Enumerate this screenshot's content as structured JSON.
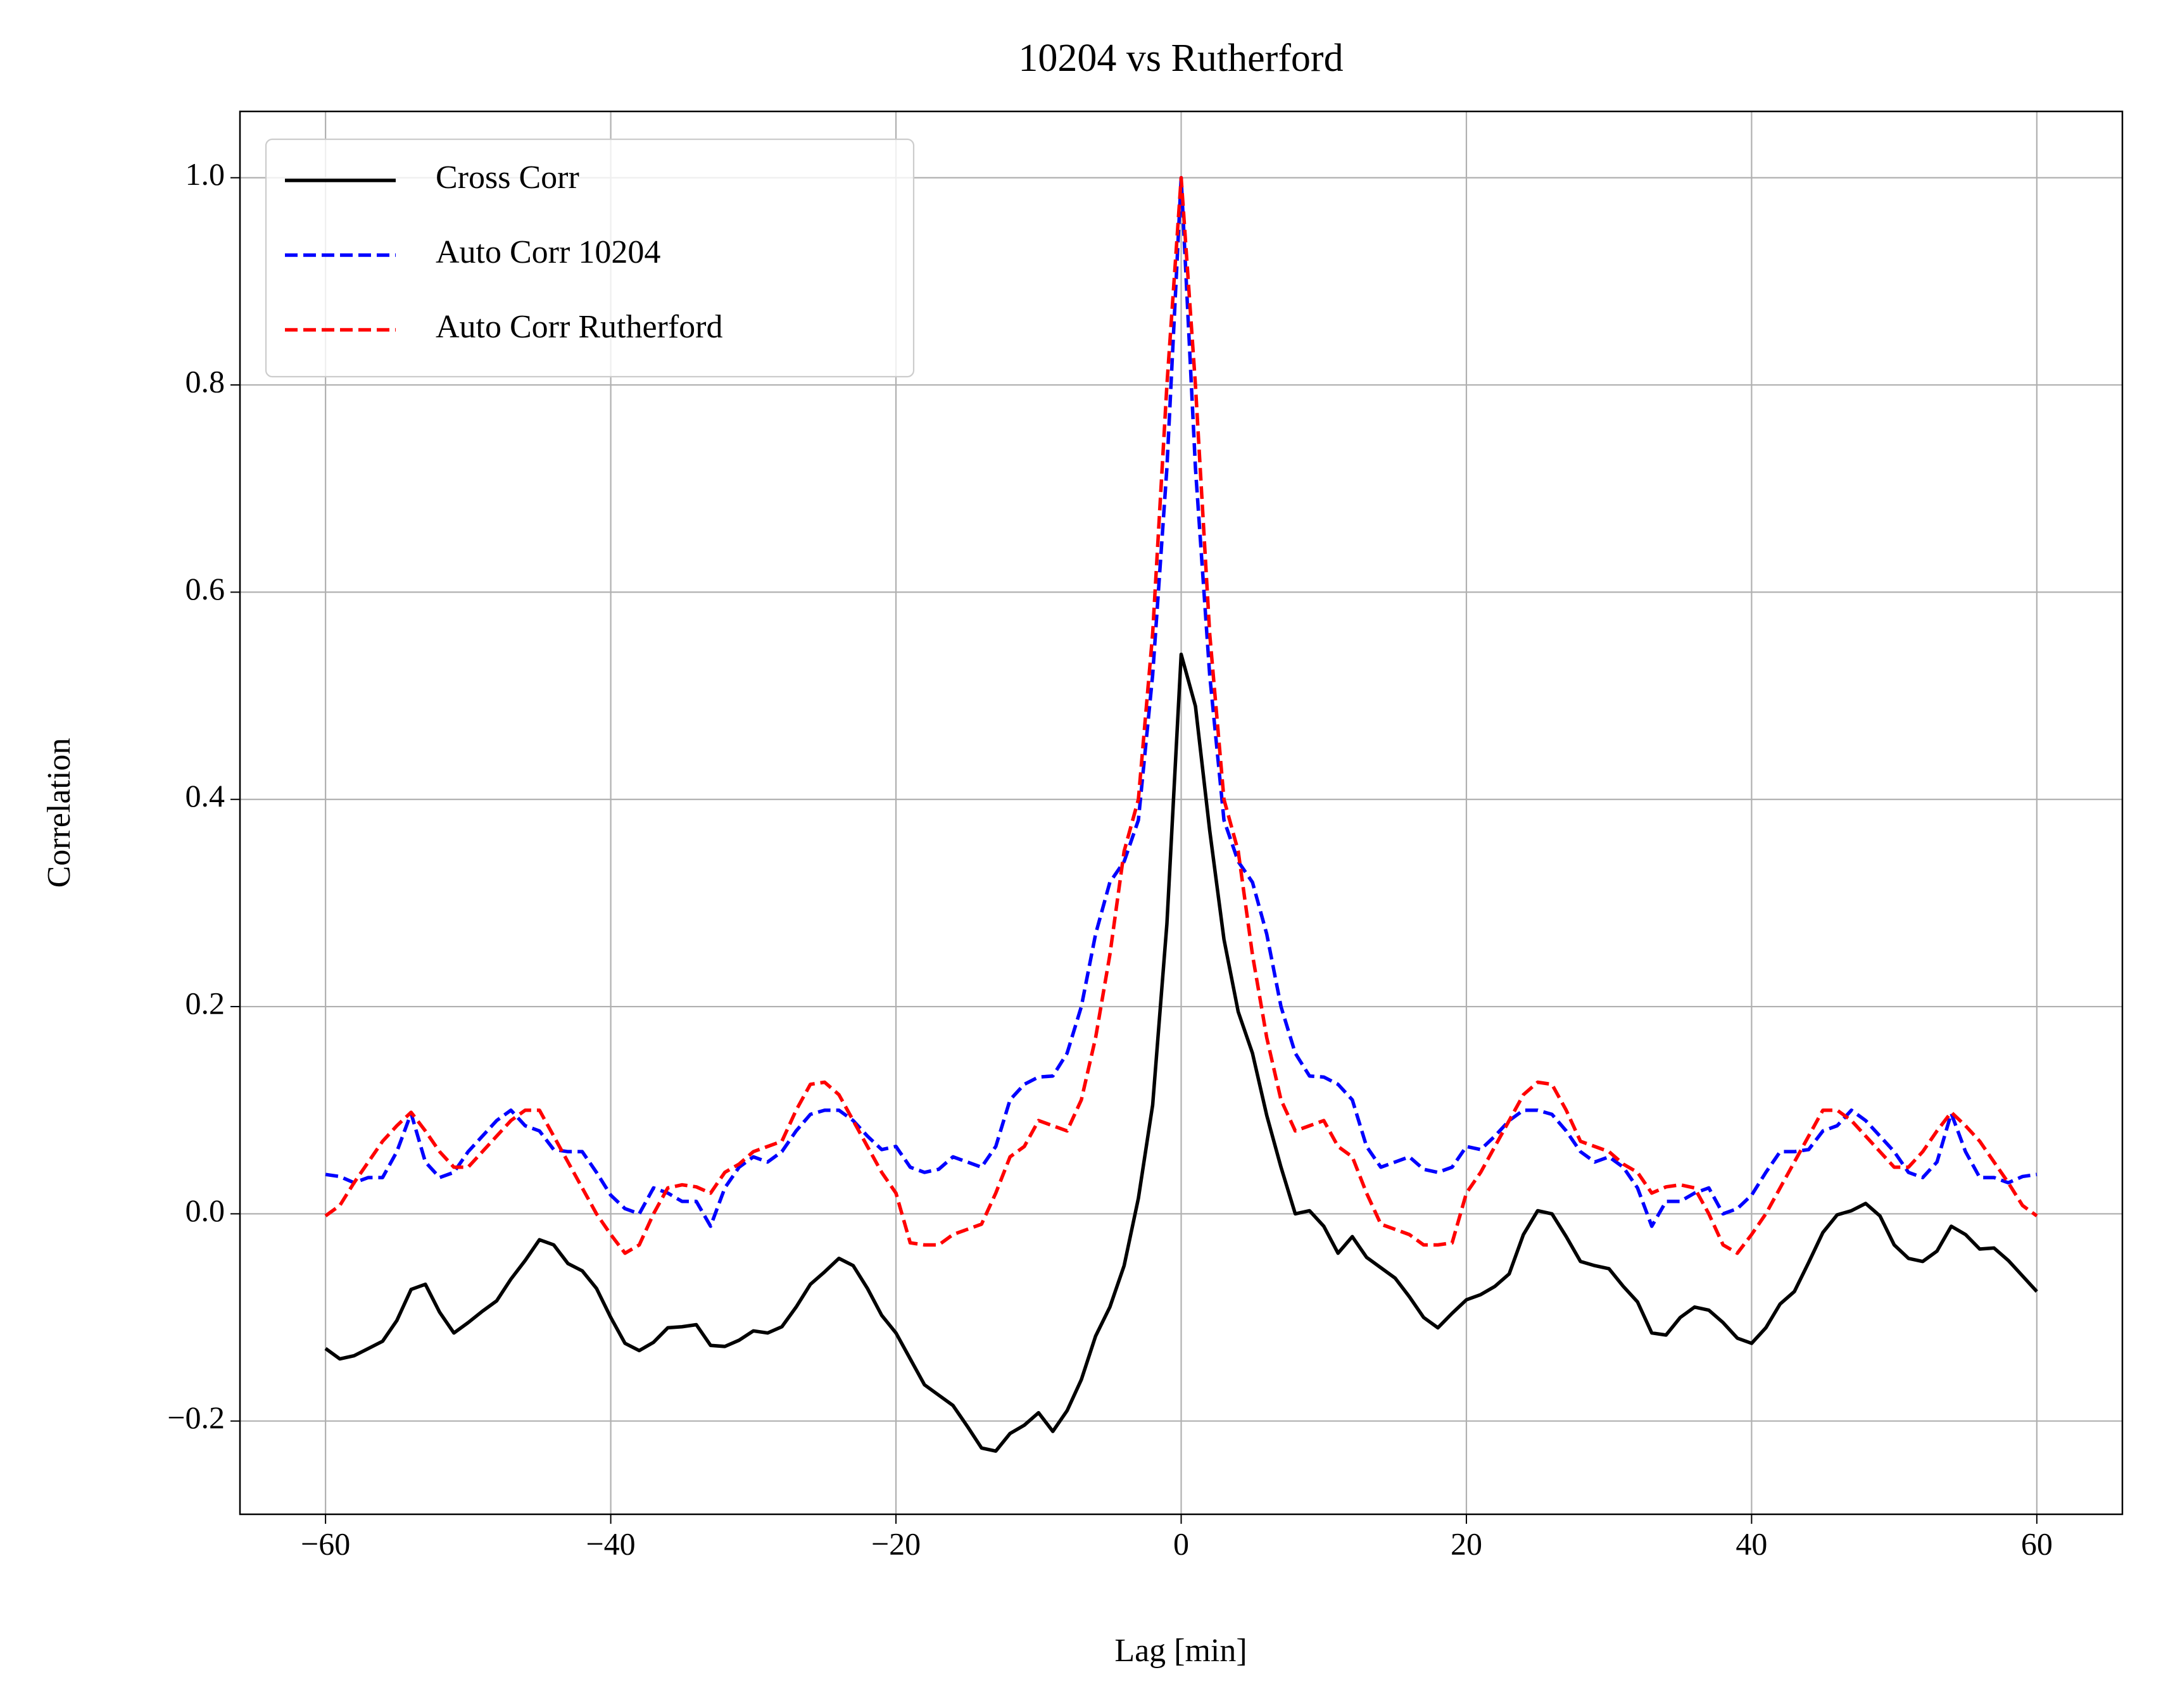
{
  "chart_data": {
    "type": "line",
    "title": "10204 vs Rutherford",
    "xlabel": "Lag [min]",
    "ylabel": "Correlation",
    "x": [
      -60,
      -59,
      -58,
      -57,
      -56,
      -55,
      -54,
      -53,
      -52,
      -51,
      -50,
      -49,
      -48,
      -47,
      -46,
      -45,
      -44,
      -43,
      -42,
      -41,
      -40,
      -39,
      -38,
      -37,
      -36,
      -35,
      -34,
      -33,
      -32,
      -31,
      -30,
      -29,
      -28,
      -27,
      -26,
      -25,
      -24,
      -23,
      -22,
      -21,
      -20,
      -19,
      -18,
      -17,
      -16,
      -15,
      -14,
      -13,
      -12,
      -11,
      -10,
      -9,
      -8,
      -7,
      -6,
      -5,
      -4,
      -3,
      -2,
      -1,
      0,
      1,
      2,
      3,
      4,
      5,
      6,
      7,
      8,
      9,
      10,
      11,
      12,
      13,
      14,
      15,
      16,
      17,
      18,
      19,
      20,
      21,
      22,
      23,
      24,
      25,
      26,
      27,
      28,
      29,
      30,
      31,
      32,
      33,
      34,
      35,
      36,
      37,
      38,
      39,
      40,
      41,
      42,
      43,
      44,
      45,
      46,
      47,
      48,
      49,
      50,
      51,
      52,
      53,
      54,
      55,
      56,
      57,
      58,
      59,
      60
    ],
    "series": [
      {
        "name": "Cross Corr",
        "color": "#000000",
        "dash": false,
        "values": [
          -0.13,
          -0.14,
          -0.137,
          -0.13,
          -0.123,
          -0.103,
          -0.073,
          -0.068,
          -0.095,
          -0.115,
          -0.105,
          -0.094,
          -0.084,
          -0.063,
          -0.045,
          -0.025,
          -0.03,
          -0.048,
          -0.055,
          -0.072,
          -0.1,
          -0.125,
          -0.132,
          -0.124,
          -0.11,
          -0.109,
          -0.107,
          -0.127,
          -0.128,
          -0.122,
          -0.113,
          -0.115,
          -0.109,
          -0.09,
          -0.068,
          -0.056,
          -0.043,
          -0.05,
          -0.072,
          -0.098,
          -0.115,
          -0.14,
          -0.165,
          -0.175,
          -0.185,
          -0.205,
          -0.226,
          -0.229,
          -0.212,
          -0.204,
          -0.192,
          -0.21,
          -0.19,
          -0.16,
          -0.118,
          -0.09,
          -0.05,
          0.015,
          0.105,
          0.28,
          0.54,
          0.49,
          0.37,
          0.265,
          0.195,
          0.155,
          0.095,
          0.045,
          0.0,
          0.003,
          -0.012,
          -0.038,
          -0.022,
          -0.042,
          -0.052,
          -0.062,
          -0.08,
          -0.1,
          -0.11,
          -0.096,
          -0.083,
          -0.078,
          -0.07,
          -0.058,
          -0.02,
          0.003,
          0.0,
          -0.022,
          -0.046,
          -0.05,
          -0.053,
          -0.07,
          -0.085,
          -0.115,
          -0.117,
          -0.1,
          -0.09,
          -0.093,
          -0.105,
          -0.12,
          -0.125,
          -0.11,
          -0.087,
          -0.075,
          -0.047,
          -0.018,
          -0.001,
          0.003,
          0.01,
          -0.002,
          -0.03,
          -0.043,
          -0.046,
          -0.036,
          -0.012,
          -0.02,
          -0.034,
          -0.033,
          -0.045,
          -0.06,
          -0.075
        ]
      },
      {
        "name": "Auto Corr 10204",
        "color": "#0000ff",
        "dash": true,
        "values": [
          0.038,
          0.036,
          0.03,
          0.035,
          0.035,
          0.06,
          0.097,
          0.05,
          0.035,
          0.04,
          0.06,
          0.075,
          0.09,
          0.1,
          0.085,
          0.08,
          0.062,
          0.06,
          0.06,
          0.04,
          0.018,
          0.005,
          0.0,
          0.025,
          0.02,
          0.012,
          0.012,
          -0.012,
          0.025,
          0.045,
          0.055,
          0.05,
          0.06,
          0.08,
          0.096,
          0.1,
          0.1,
          0.09,
          0.075,
          0.062,
          0.065,
          0.045,
          0.04,
          0.043,
          0.055,
          0.05,
          0.045,
          0.065,
          0.11,
          0.125,
          0.132,
          0.133,
          0.155,
          0.2,
          0.27,
          0.32,
          0.34,
          0.38,
          0.52,
          0.72,
          1.0,
          0.72,
          0.52,
          0.38,
          0.34,
          0.32,
          0.27,
          0.2,
          0.155,
          0.133,
          0.132,
          0.125,
          0.11,
          0.065,
          0.045,
          0.05,
          0.055,
          0.043,
          0.04,
          0.045,
          0.065,
          0.062,
          0.075,
          0.09,
          0.1,
          0.1,
          0.096,
          0.08,
          0.06,
          0.05,
          0.055,
          0.045,
          0.025,
          -0.012,
          0.012,
          0.012,
          0.02,
          0.025,
          0.0,
          0.005,
          0.018,
          0.04,
          0.06,
          0.06,
          0.062,
          0.08,
          0.085,
          0.1,
          0.09,
          0.075,
          0.06,
          0.04,
          0.035,
          0.05,
          0.097,
          0.06,
          0.035,
          0.035,
          0.03,
          0.036,
          0.038
        ]
      },
      {
        "name": "Auto Corr Rutherford",
        "color": "#ff0000",
        "dash": true,
        "values": [
          -0.002,
          0.008,
          0.03,
          0.05,
          0.07,
          0.085,
          0.098,
          0.08,
          0.06,
          0.045,
          0.045,
          0.06,
          0.075,
          0.09,
          0.1,
          0.1,
          0.075,
          0.05,
          0.025,
          0.0,
          -0.02,
          -0.038,
          -0.03,
          0.0,
          0.025,
          0.028,
          0.026,
          0.02,
          0.04,
          0.048,
          0.06,
          0.065,
          0.07,
          0.1,
          0.125,
          0.127,
          0.115,
          0.09,
          0.065,
          0.04,
          0.02,
          -0.028,
          -0.03,
          -0.03,
          -0.02,
          -0.015,
          -0.01,
          0.02,
          0.055,
          0.065,
          0.09,
          0.085,
          0.08,
          0.11,
          0.17,
          0.25,
          0.35,
          0.4,
          0.56,
          0.8,
          1.0,
          0.8,
          0.56,
          0.4,
          0.35,
          0.25,
          0.17,
          0.11,
          0.08,
          0.085,
          0.09,
          0.065,
          0.055,
          0.02,
          -0.01,
          -0.015,
          -0.02,
          -0.03,
          -0.03,
          -0.028,
          0.02,
          0.04,
          0.065,
          0.09,
          0.115,
          0.127,
          0.125,
          0.1,
          0.07,
          0.065,
          0.06,
          0.048,
          0.04,
          0.02,
          0.026,
          0.028,
          0.025,
          0.0,
          -0.03,
          -0.038,
          -0.02,
          0.0,
          0.025,
          0.05,
          0.075,
          0.1,
          0.1,
          0.09,
          0.075,
          0.06,
          0.045,
          0.045,
          0.06,
          0.08,
          0.098,
          0.085,
          0.07,
          0.05,
          0.03,
          0.008,
          -0.002
        ]
      }
    ],
    "xlim": [
      -66,
      66
    ],
    "ylim": [
      -0.29,
      1.064
    ],
    "xticks": [
      {
        "value": -60,
        "label": "−60"
      },
      {
        "value": -40,
        "label": "−40"
      },
      {
        "value": -20,
        "label": "−20"
      },
      0,
      20,
      40,
      60
    ],
    "yticks": [
      {
        "value": -0.2,
        "label": "−0.2"
      },
      {
        "value": 0,
        "label": "0.0"
      },
      0.2,
      0.4,
      0.6,
      0.8,
      {
        "value": 1,
        "label": "1.0"
      }
    ],
    "grid": true,
    "legend": "upper left"
  }
}
